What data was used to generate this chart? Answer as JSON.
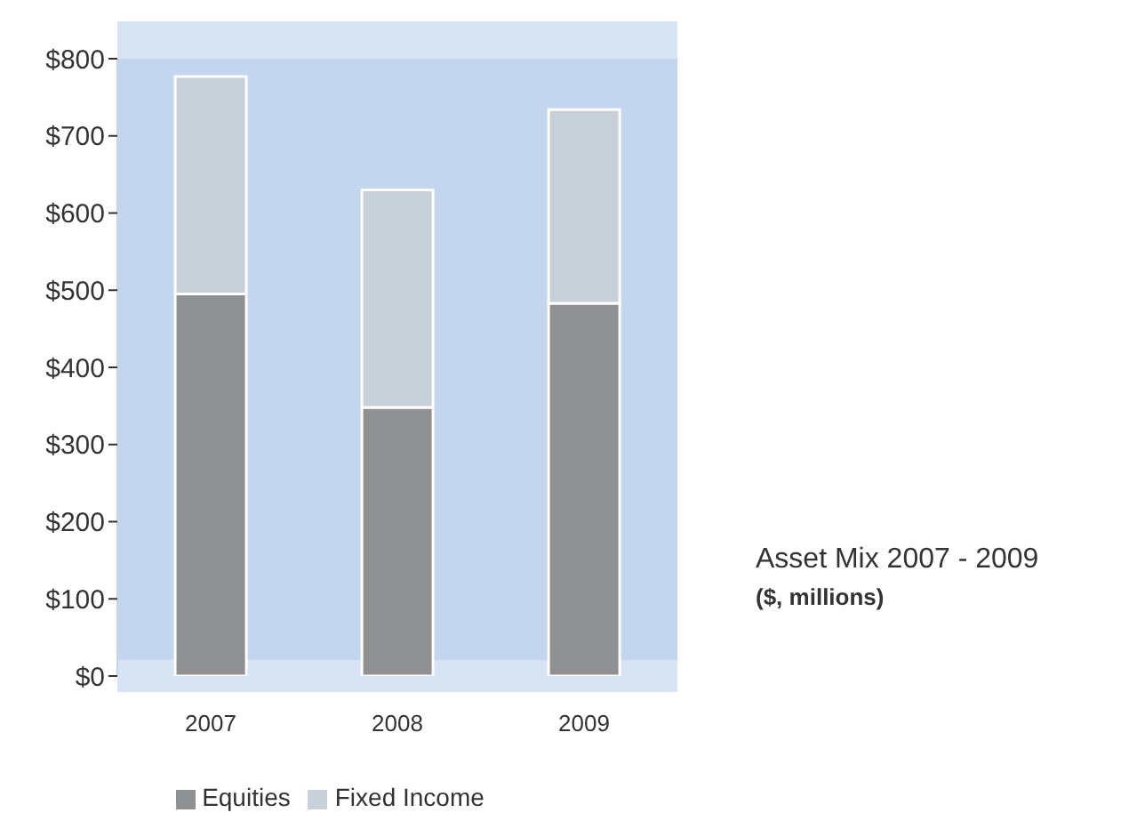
{
  "chart_data": {
    "type": "bar",
    "title": "Asset Mix 2007 - 2009",
    "subtitle": "($, millions)",
    "categories": [
      "2007",
      "2008",
      "2009"
    ],
    "series": [
      {
        "name": "Equities",
        "color": "#8f9092",
        "values": [
          495,
          348,
          483
        ]
      },
      {
        "name": "Fixed Income",
        "color": "#c8d0d9",
        "values": [
          282,
          282,
          251
        ]
      }
    ],
    "stacked": true,
    "ylim": [
      0,
      800
    ],
    "yticks": [
      {
        "value": 0,
        "label": "$0"
      },
      {
        "value": 100,
        "label": "$100"
      },
      {
        "value": 200,
        "label": "$200"
      },
      {
        "value": 300,
        "label": "$300"
      },
      {
        "value": 400,
        "label": "$400"
      },
      {
        "value": 500,
        "label": "$500"
      },
      {
        "value": 600,
        "label": "$600"
      },
      {
        "value": 700,
        "label": "$700"
      },
      {
        "value": 800,
        "label": "$800"
      }
    ],
    "grid": false,
    "legend": "bottom"
  }
}
